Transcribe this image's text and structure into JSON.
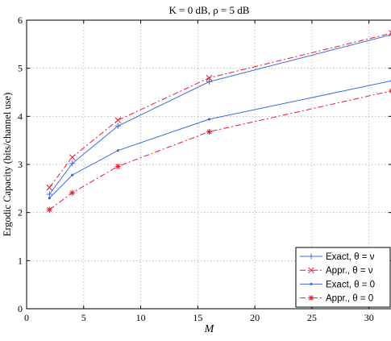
{
  "chart_data": {
    "type": "line",
    "title": "K = 0 dB,  ρ = 5 dB",
    "xlabel": "M",
    "ylabel": "Ergodic Capacity (bits/channel use)",
    "xlim": [
      0,
      32
    ],
    "ylim": [
      0,
      6
    ],
    "xticks": [
      0,
      5,
      10,
      15,
      20,
      25,
      30
    ],
    "yticks": [
      0,
      1,
      2,
      3,
      4,
      5,
      6
    ],
    "grid": true,
    "legend_position": "bottom-right",
    "series": [
      {
        "name": "Exact, θ = ν",
        "color": "#4169e1",
        "line": "solid",
        "marker": "plus",
        "x": [
          2,
          4,
          8,
          16,
          32
        ],
        "y": [
          2.38,
          3.02,
          3.8,
          4.72,
          5.7
        ]
      },
      {
        "name": "Appr., θ = ν",
        "color": "#e8192c",
        "line": "dashdot",
        "marker": "x",
        "x": [
          2,
          4,
          8,
          16,
          32
        ],
        "y": [
          2.52,
          3.15,
          3.92,
          4.8,
          5.73
        ]
      },
      {
        "name": "Exact, θ = 0",
        "color": "#4169e1",
        "line": "solid",
        "marker": "dot",
        "x": [
          2,
          4,
          8,
          16,
          32
        ],
        "y": [
          2.3,
          2.78,
          3.29,
          3.94,
          4.74
        ]
      },
      {
        "name": "Appr., θ = 0",
        "color": "#e8192c",
        "line": "dashdot",
        "marker": "star",
        "x": [
          2,
          4,
          8,
          16,
          32
        ],
        "y": [
          2.06,
          2.41,
          2.96,
          3.68,
          4.53
        ]
      }
    ]
  }
}
